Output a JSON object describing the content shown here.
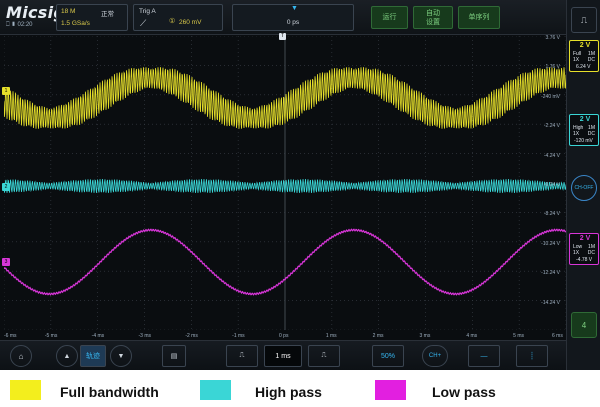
{
  "topbar": {
    "logo": "Micsig",
    "status": "⎕ ▮ 02:20",
    "memory": "18 M",
    "run_state": "正常",
    "sample_rate": "1.5 GSa/s",
    "trigger_title": "Trig A",
    "trigger_level": "260 mV",
    "time_offset": "0 ps",
    "btn_run": "运行",
    "btn_auto": "自动\n设置",
    "btn_single": "单序列"
  },
  "right_panel": {
    "top_label": "⎍",
    "ch1": {
      "scale": "2 V",
      "bw": "Full",
      "imp": "1M",
      "probe": "1X",
      "coupling": "DC",
      "offset": "6.24 V",
      "color": "#e6e02a"
    },
    "ch2": {
      "scale": "2 V",
      "bw": "High",
      "imp": "1M",
      "probe": "1X",
      "coupling": "DC",
      "offset": "-120 mV",
      "color": "#3ad6d6"
    },
    "ch3": {
      "scale": "2 V",
      "bw": "Low",
      "imp": "1M",
      "probe": "1X",
      "coupling": "DC",
      "offset": "-4.78 V",
      "color": "#d836d8"
    },
    "round_label": "CH-OFF",
    "number": "4"
  },
  "y_labels": [
    "3.76 V",
    "1.76 V",
    "-240 mV",
    "-2.24 V",
    "-4.24 V",
    "-6.24 V",
    "-8.24 V",
    "-10.24 V",
    "-12.24 V",
    "-14.24 V"
  ],
  "x_labels": [
    "-6 ms",
    "-5 ms",
    "-4 ms",
    "-3 ms",
    "-2 ms",
    "-1 ms",
    "0 ps",
    "1 ms",
    "2 ms",
    "3 ms",
    "4 ms",
    "5 ms",
    "6 ms"
  ],
  "bottombar": {
    "home": "⌂",
    "up": "▲",
    "mode": "轨迹",
    "down": "▼",
    "doc": "▤",
    "pulse_left": "⎍",
    "timebase": "1 ms",
    "pulse_right": "⎍",
    "pct": "50%",
    "ch_add": "CH+",
    "line": "—",
    "cursor": "┊"
  },
  "legend": {
    "full": "Full bandwidth",
    "high": "High pass",
    "low": "Low pass"
  },
  "colors": {
    "yellow": "#e6e02a",
    "cyan": "#3ad6d6",
    "magenta": "#d836d8"
  }
}
